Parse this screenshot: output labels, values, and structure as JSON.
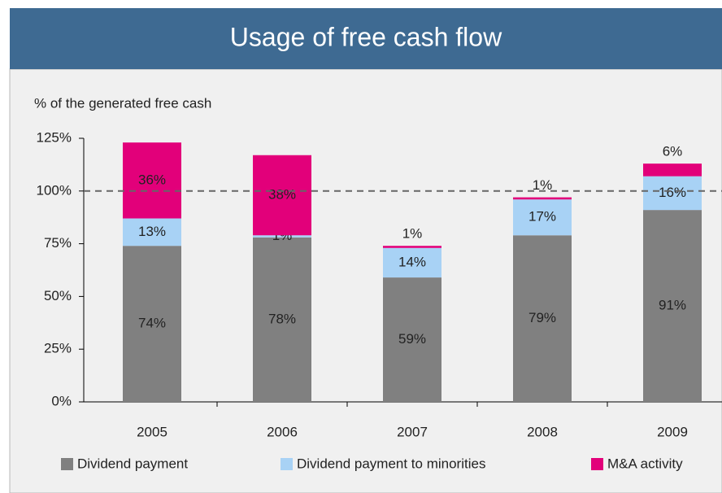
{
  "chart_data": {
    "type": "stacked_bar",
    "title": "Usage of free cash flow",
    "y_axis_label": "% of the generated free cash",
    "categories": [
      "2005",
      "2006",
      "2007",
      "2008",
      "2009"
    ],
    "series": [
      {
        "name": "Dividend payment",
        "color": "#808080",
        "values": [
          74,
          78,
          59,
          79,
          91
        ],
        "value_labels": [
          "74%",
          "78%",
          "59%",
          "79%",
          "91%"
        ]
      },
      {
        "name": "Dividend payment to minorities",
        "color": "#a8d2f5",
        "values": [
          13,
          1,
          14,
          17,
          16
        ],
        "value_labels": [
          "13%",
          "1%",
          "14%",
          "17%",
          "16%"
        ]
      },
      {
        "name": "M&A activity",
        "color": "#e2007a",
        "values": [
          36,
          38,
          1,
          1,
          6
        ],
        "value_labels": [
          "36%",
          "38%",
          "1%",
          "1%",
          "6%"
        ]
      }
    ],
    "ylim": [
      0,
      125
    ],
    "yticks": [
      {
        "value": 0,
        "label": "0%"
      },
      {
        "value": 25,
        "label": "25%"
      },
      {
        "value": 50,
        "label": "50%"
      },
      {
        "value": 75,
        "label": "75%"
      },
      {
        "value": 100,
        "label": "100%"
      },
      {
        "value": 125,
        "label": "125%"
      }
    ],
    "reference_line": 100,
    "legend": "bottom"
  }
}
